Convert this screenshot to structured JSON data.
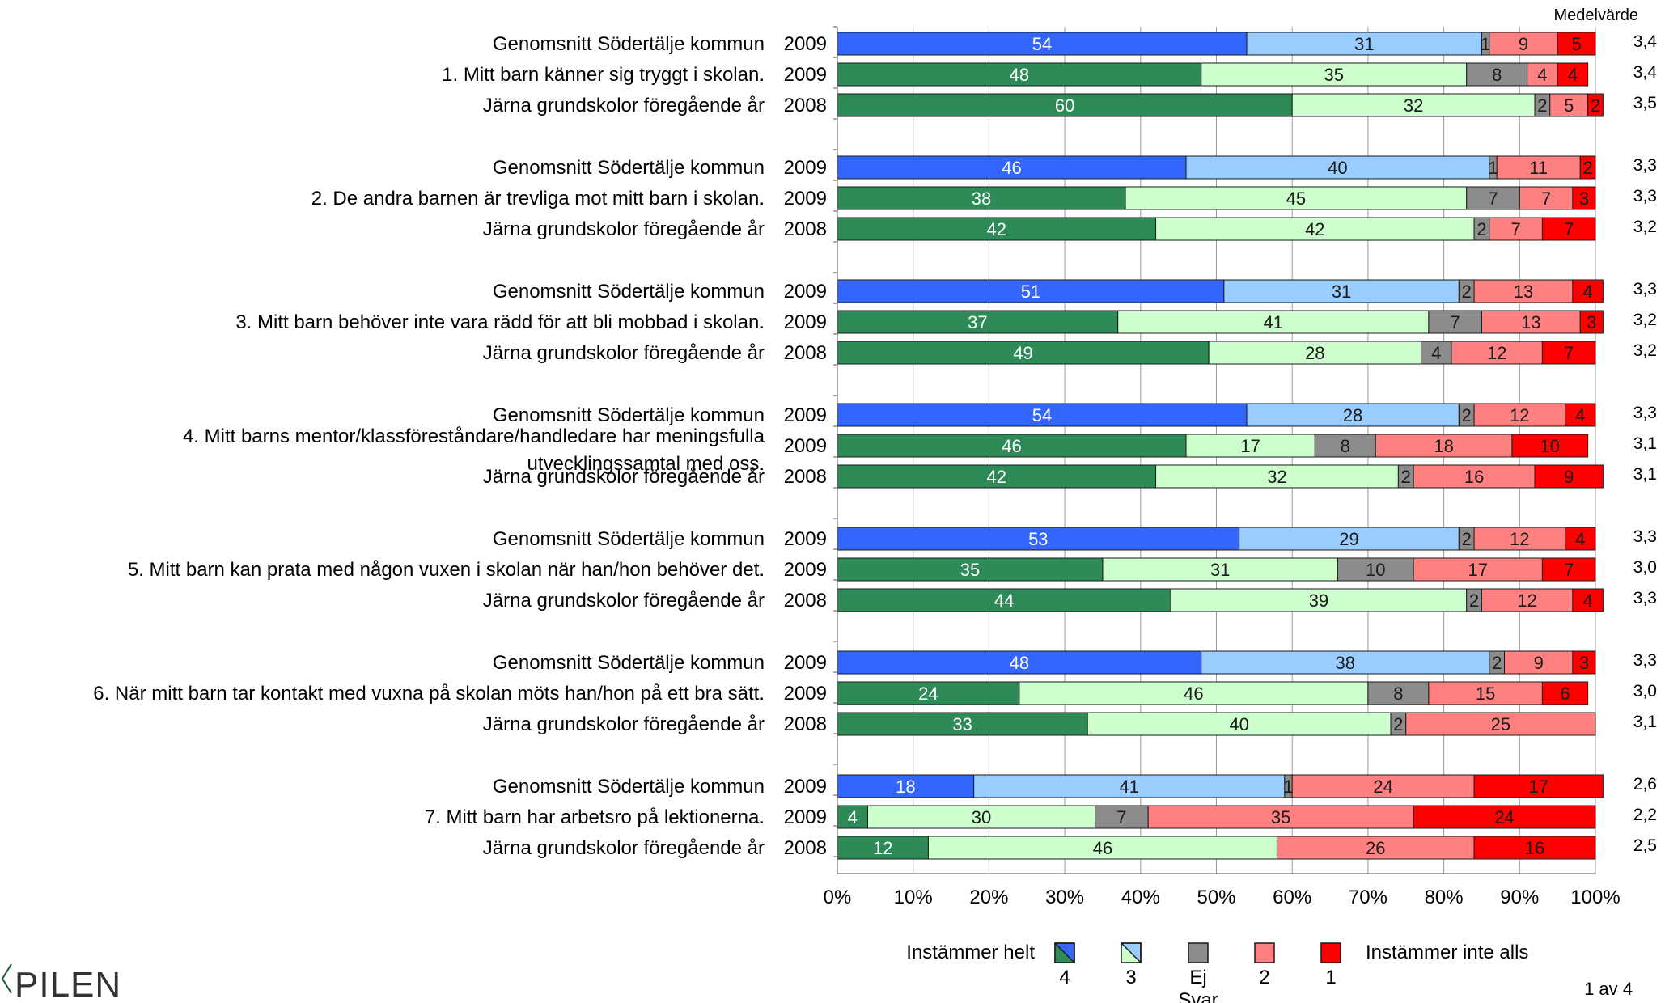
{
  "chart_data": {
    "type": "bar",
    "stacked": true,
    "orientation": "horizontal",
    "percent": true,
    "mean_header": "Medelvärde",
    "x_ticks": [
      "0%",
      "10%",
      "20%",
      "30%",
      "40%",
      "50%",
      "60%",
      "70%",
      "80%",
      "90%",
      "100%"
    ],
    "xlim": [
      0,
      100
    ],
    "grid": true,
    "groups": [
      {
        "question": "1.  Mitt barn känner sig tryggt i skolan.",
        "rows": [
          {
            "label": "Genomsnitt Södertälje kommun",
            "year": "2009",
            "kind": "kommun",
            "values": [
              54,
              31,
              1,
              9,
              5
            ],
            "mean": "3,4"
          },
          {
            "label": "",
            "year": "2009",
            "kind": "school",
            "values": [
              48,
              35,
              8,
              4,
              4
            ],
            "mean": "3,4"
          },
          {
            "label": "Järna grundskolor föregående år",
            "year": "2008",
            "kind": "school",
            "values": [
              60,
              32,
              2,
              5,
              2
            ],
            "mean": "3,5"
          }
        ]
      },
      {
        "question": "2.  De andra barnen är trevliga mot mitt barn i skolan.",
        "rows": [
          {
            "label": "Genomsnitt Södertälje kommun",
            "year": "2009",
            "kind": "kommun",
            "values": [
              46,
              40,
              1,
              11,
              2
            ],
            "mean": "3,3"
          },
          {
            "label": "",
            "year": "2009",
            "kind": "school",
            "values": [
              38,
              45,
              7,
              7,
              3
            ],
            "mean": "3,3"
          },
          {
            "label": "Järna grundskolor föregående år",
            "year": "2008",
            "kind": "school",
            "values": [
              42,
              42,
              2,
              7,
              7
            ],
            "mean": "3,2"
          }
        ]
      },
      {
        "question": "3.  Mitt barn behöver inte vara rädd för att bli mobbad i skolan.",
        "rows": [
          {
            "label": "Genomsnitt Södertälje kommun",
            "year": "2009",
            "kind": "kommun",
            "values": [
              51,
              31,
              2,
              13,
              4
            ],
            "mean": "3,3"
          },
          {
            "label": "",
            "year": "2009",
            "kind": "school",
            "values": [
              37,
              41,
              7,
              13,
              3
            ],
            "mean": "3,2"
          },
          {
            "label": "Järna grundskolor föregående år",
            "year": "2008",
            "kind": "school",
            "values": [
              49,
              28,
              4,
              12,
              7
            ],
            "mean": "3,2"
          }
        ]
      },
      {
        "question": "4.  Mitt barns mentor/klassföreståndare/handledare har meningsfulla utvecklingssamtal med oss.",
        "question_lines": [
          "4.  Mitt barns mentor/klassföreståndare/handledare har meningsfulla",
          "utvecklingssamtal med oss."
        ],
        "rows": [
          {
            "label": "Genomsnitt Södertälje kommun",
            "year": "2009",
            "kind": "kommun",
            "values": [
              54,
              28,
              2,
              12,
              4
            ],
            "mean": "3,3"
          },
          {
            "label": "",
            "year": "2009",
            "kind": "school",
            "values": [
              46,
              17,
              8,
              18,
              10
            ],
            "mean": "3,1"
          },
          {
            "label": "Järna grundskolor föregående år",
            "year": "2008",
            "kind": "school",
            "values": [
              42,
              32,
              2,
              16,
              9
            ],
            "mean": "3,1"
          }
        ]
      },
      {
        "question": "5.  Mitt barn kan prata med någon vuxen i skolan när han/hon behöver det.",
        "rows": [
          {
            "label": "Genomsnitt Södertälje kommun",
            "year": "2009",
            "kind": "kommun",
            "values": [
              53,
              29,
              2,
              12,
              4
            ],
            "mean": "3,3"
          },
          {
            "label": "",
            "year": "2009",
            "kind": "school",
            "values": [
              35,
              31,
              10,
              17,
              7
            ],
            "mean": "3,0"
          },
          {
            "label": "Järna grundskolor föregående år",
            "year": "2008",
            "kind": "school",
            "values": [
              44,
              39,
              2,
              12,
              4
            ],
            "mean": "3,3"
          }
        ]
      },
      {
        "question": "6.  När mitt barn tar kontakt med vuxna på skolan möts han/hon på ett bra sätt.",
        "rows": [
          {
            "label": "Genomsnitt Södertälje kommun",
            "year": "2009",
            "kind": "kommun",
            "values": [
              48,
              38,
              2,
              9,
              3
            ],
            "mean": "3,3"
          },
          {
            "label": "",
            "year": "2009",
            "kind": "school",
            "values": [
              24,
              46,
              8,
              15,
              6
            ],
            "mean": "3,0"
          },
          {
            "label": "Järna grundskolor föregående år",
            "year": "2008",
            "kind": "school",
            "values": [
              33,
              40,
              2,
              25,
              0
            ],
            "mean": "3,1"
          }
        ]
      },
      {
        "question": "7.  Mitt barn har arbetsro på lektionerna.",
        "rows": [
          {
            "label": "Genomsnitt Södertälje kommun",
            "year": "2009",
            "kind": "kommun",
            "values": [
              18,
              41,
              1,
              24,
              17
            ],
            "mean": "2,6"
          },
          {
            "label": "",
            "year": "2009",
            "kind": "school",
            "values": [
              4,
              30,
              7,
              35,
              24
            ],
            "mean": "2,2"
          },
          {
            "label": "Järna grundskolor föregående år",
            "year": "2008",
            "kind": "school",
            "values": [
              12,
              46,
              0,
              26,
              16
            ],
            "mean": "2,5"
          }
        ]
      }
    ],
    "legend": {
      "left_text": "Instämmer helt",
      "right_text": "Instämmer inte alls",
      "items": [
        {
          "label": "4"
        },
        {
          "label": "3"
        },
        {
          "label": "Ej\nSvar"
        },
        {
          "label": "2"
        },
        {
          "label": "1"
        }
      ]
    },
    "colors": {
      "kommun": [
        "#3366ff",
        "#99ccff",
        "#8c8c8c",
        "#ff8080",
        "#ff0000"
      ],
      "school": [
        "#2e8b57",
        "#ccffcc",
        "#8c8c8c",
        "#ff8080",
        "#ff0000"
      ],
      "label_light": "#ffffff",
      "label_dark": "#1a1a1a"
    }
  },
  "footer": {
    "logo_text": "PILEN",
    "page": "1 av 4"
  }
}
